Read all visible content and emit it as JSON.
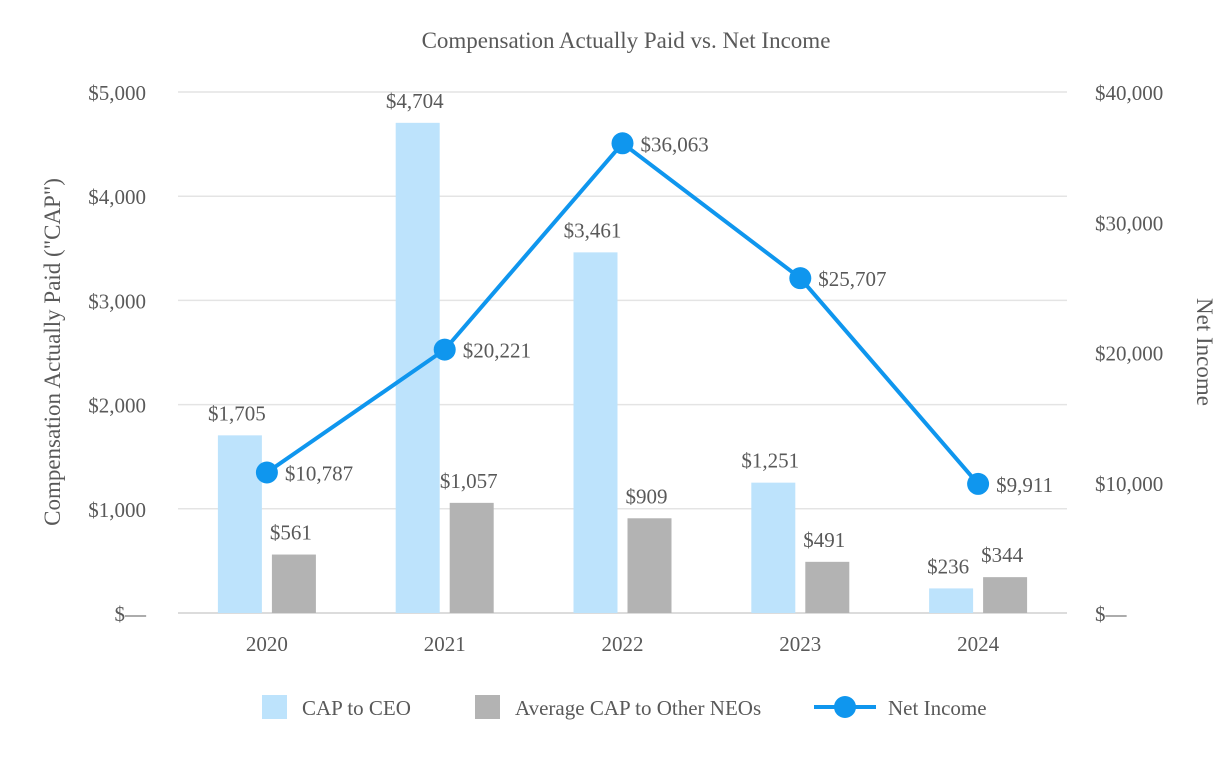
{
  "chart_data": {
    "type": "bar",
    "title": "Compensation Actually Paid vs. Net Income",
    "categories": [
      "2020",
      "2021",
      "2022",
      "2023",
      "2024"
    ],
    "ylabel": "Compensation Actually Paid (\"CAP\")",
    "y2label": "Net Income",
    "ylim": [
      0,
      5000
    ],
    "y2lim": [
      0,
      40000
    ],
    "yticks": [
      0,
      1000,
      2000,
      3000,
      4000,
      5000
    ],
    "ytick_labels": [
      "$—",
      "$1,000",
      "$2,000",
      "$3,000",
      "$4,000",
      "$5,000"
    ],
    "y2ticks": [
      0,
      10000,
      20000,
      30000,
      40000
    ],
    "y2tick_labels": [
      "$—",
      "$10,000",
      "$20,000",
      "$30,000",
      "$40,000"
    ],
    "grid": true,
    "legend_position": "bottom",
    "series": [
      {
        "name": "CAP to CEO",
        "type": "bar",
        "axis": "left",
        "color": "#BDE3FC",
        "values": [
          1705,
          4704,
          3461,
          1251,
          236
        ],
        "labels": [
          "$1,705",
          "$4,704",
          "$3,461",
          "$1,251",
          "$236"
        ]
      },
      {
        "name": "Average CAP to Other NEOs",
        "type": "bar",
        "axis": "left",
        "color": "#B3B3B3",
        "values": [
          561,
          1057,
          909,
          491,
          344
        ],
        "labels": [
          "$561",
          "$1,057",
          "$909",
          "$491",
          "$344"
        ]
      },
      {
        "name": "Net Income",
        "type": "line",
        "axis": "right",
        "color": "#0F96EE",
        "values": [
          10787,
          20221,
          36063,
          25707,
          9911
        ],
        "labels": [
          "$10,787",
          "$20,221",
          "$36,063",
          "$25,707",
          "$9,911"
        ]
      }
    ]
  }
}
